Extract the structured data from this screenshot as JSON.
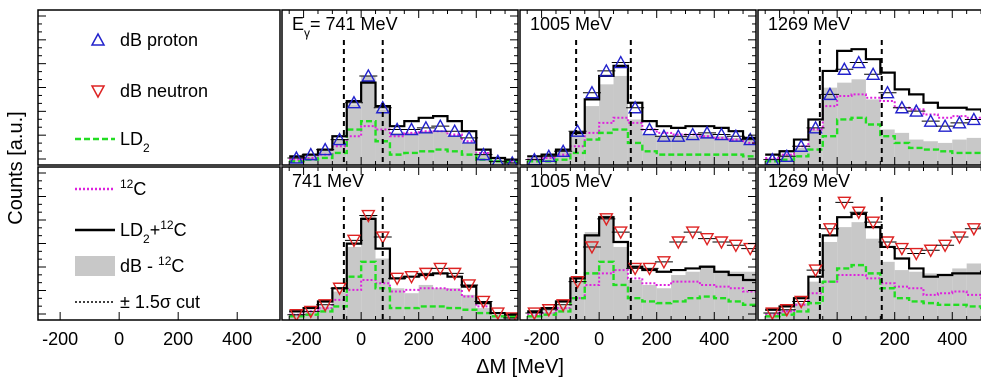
{
  "figure": {
    "ylabel": "Counts [a.u.]",
    "xlabel": "ΔM [MeV]",
    "legend": [
      {
        "key": "dBp",
        "label": "dB proton",
        "color": "#2222cc",
        "marker": "triangle-up"
      },
      {
        "key": "dBn",
        "label": "dB neutron",
        "color": "#dd2222",
        "marker": "triangle-down"
      },
      {
        "key": "LD2",
        "label": "LD",
        "sub": "2",
        "color": "#22dd22",
        "style": "dashed"
      },
      {
        "key": "C12",
        "sup": "12",
        "label": "C",
        "color": "#dd22dd",
        "style": "dotted"
      },
      {
        "key": "sum",
        "label": "LD",
        "sub": "2",
        "label2": "+",
        "sup2": "12",
        "label3": "C",
        "color": "#000000",
        "style": "solid"
      },
      {
        "key": "diff",
        "label": "dB - ",
        "sup2": "12",
        "label3": "C",
        "color": "#c8c8c8",
        "style": "filled"
      },
      {
        "key": "cut",
        "label": "± 1.5σ cut",
        "color": "#000000",
        "style": "dotted-black"
      }
    ],
    "legend_ticks": [
      "-200",
      "0",
      "200",
      "400"
    ]
  },
  "chart_data": [
    {
      "type": "histogram",
      "row": "top",
      "energy": "741",
      "title_prefix": "E",
      "title_sub": "γ",
      "title_suffix": "= 741 MeV",
      "xlim": [
        -275,
        545
      ],
      "ylim": [
        0,
        1
      ],
      "xticks": [
        -200,
        0,
        200,
        400
      ],
      "cuts": [
        -60,
        75
      ],
      "points_series": "dB proton",
      "x": [
        -225,
        -175,
        -125,
        -75,
        -25,
        25,
        75,
        125,
        175,
        225,
        275,
        325,
        375,
        425,
        475,
        525
      ],
      "LD2": [
        0.01,
        0.02,
        0.03,
        0.06,
        0.2,
        0.25,
        0.13,
        0.05,
        0.06,
        0.07,
        0.08,
        0.07,
        0.05,
        0.02,
        0.01,
        0.01
      ],
      "C12": [
        0.02,
        0.03,
        0.05,
        0.1,
        0.16,
        0.22,
        0.2,
        0.16,
        0.18,
        0.19,
        0.19,
        0.17,
        0.13,
        0.06,
        0.03,
        0.01
      ],
      "sum": [
        0.04,
        0.05,
        0.08,
        0.16,
        0.37,
        0.48,
        0.34,
        0.22,
        0.25,
        0.27,
        0.28,
        0.25,
        0.19,
        0.08,
        0.03,
        0.02
      ],
      "diff": [
        0.03,
        0.05,
        0.08,
        0.14,
        0.35,
        0.52,
        0.32,
        0.18,
        0.18,
        0.19,
        0.19,
        0.16,
        0.12,
        0.05,
        0.02,
        0.01
      ],
      "points": [
        0.03,
        0.05,
        0.08,
        0.14,
        0.36,
        0.52,
        0.33,
        0.2,
        0.2,
        0.21,
        0.22,
        0.19,
        0.15,
        0.05,
        0.01,
        0.0
      ]
    },
    {
      "type": "histogram",
      "row": "top",
      "energy": "1005",
      "title_prefix": "",
      "title_sub": "",
      "title_suffix": "1005 MeV",
      "xlim": [
        -275,
        545
      ],
      "ylim": [
        0,
        1
      ],
      "xticks": [
        -200,
        0,
        200,
        400
      ],
      "cuts": [
        -80,
        110
      ],
      "points_series": "dB proton",
      "x": [
        -225,
        -175,
        -125,
        -75,
        -25,
        25,
        75,
        125,
        175,
        225,
        275,
        325,
        375,
        425,
        475,
        525
      ],
      "LD2": [
        0.01,
        0.01,
        0.02,
        0.06,
        0.14,
        0.18,
        0.2,
        0.12,
        0.07,
        0.05,
        0.05,
        0.05,
        0.05,
        0.05,
        0.05,
        0.04
      ],
      "C12": [
        0.02,
        0.03,
        0.05,
        0.1,
        0.18,
        0.24,
        0.27,
        0.24,
        0.2,
        0.18,
        0.17,
        0.17,
        0.16,
        0.15,
        0.14,
        0.12
      ],
      "sum": [
        0.04,
        0.05,
        0.08,
        0.18,
        0.38,
        0.52,
        0.58,
        0.36,
        0.25,
        0.22,
        0.21,
        0.22,
        0.22,
        0.21,
        0.19,
        0.15
      ],
      "diff": [
        0.03,
        0.05,
        0.08,
        0.18,
        0.34,
        0.47,
        0.52,
        0.26,
        0.17,
        0.16,
        0.16,
        0.16,
        0.17,
        0.16,
        0.15,
        0.14
      ],
      "points": [
        0.02,
        0.04,
        0.07,
        0.19,
        0.42,
        0.55,
        0.6,
        0.33,
        0.2,
        0.16,
        0.16,
        0.17,
        0.18,
        0.17,
        0.16,
        0.14
      ]
    },
    {
      "type": "histogram",
      "row": "top",
      "energy": "1269",
      "title_prefix": "",
      "title_sub": "",
      "title_suffix": "1269 MeV",
      "xlim": [
        -275,
        545
      ],
      "ylim": [
        0,
        1
      ],
      "xticks": [
        -200,
        0,
        200,
        400
      ],
      "cuts": [
        -60,
        155
      ],
      "points_series": "dB proton",
      "x": [
        -225,
        -175,
        -125,
        -75,
        -25,
        25,
        75,
        125,
        175,
        225,
        275,
        325,
        375,
        425,
        475,
        525
      ],
      "LD2": [
        0.01,
        0.02,
        0.04,
        0.08,
        0.16,
        0.26,
        0.27,
        0.23,
        0.16,
        0.12,
        0.09,
        0.08,
        0.07,
        0.06,
        0.06,
        0.05
      ],
      "C12": [
        0.03,
        0.05,
        0.1,
        0.2,
        0.34,
        0.4,
        0.41,
        0.39,
        0.37,
        0.33,
        0.32,
        0.29,
        0.27,
        0.28,
        0.27,
        0.26
      ],
      "sum": [
        0.05,
        0.07,
        0.14,
        0.26,
        0.55,
        0.67,
        0.68,
        0.62,
        0.54,
        0.44,
        0.41,
        0.36,
        0.33,
        0.33,
        0.32,
        0.31
      ],
      "diff": [
        0.03,
        0.05,
        0.09,
        0.2,
        0.45,
        0.48,
        0.5,
        0.38,
        0.2,
        0.18,
        0.14,
        0.13,
        0.12,
        0.14,
        0.15,
        0.15
      ],
      "points": [
        0.02,
        0.04,
        0.1,
        0.21,
        0.41,
        0.56,
        0.6,
        0.53,
        0.42,
        0.33,
        0.31,
        0.25,
        0.22,
        0.24,
        0.26,
        0.26
      ]
    },
    {
      "type": "histogram",
      "row": "bottom",
      "energy": "741",
      "title_prefix": "",
      "title_sub": "",
      "title_suffix": "741 MeV",
      "xlim": [
        -275,
        545
      ],
      "ylim": [
        0,
        1
      ],
      "xticks": [
        -200,
        0,
        200,
        400
      ],
      "cuts": [
        -60,
        75
      ],
      "points_series": "dB neutron",
      "x": [
        -225,
        -175,
        -125,
        -75,
        -25,
        25,
        75,
        125,
        175,
        225,
        275,
        325,
        375,
        425,
        475,
        525
      ],
      "LD2": [
        0.01,
        0.02,
        0.04,
        0.07,
        0.25,
        0.34,
        0.18,
        0.06,
        0.06,
        0.07,
        0.07,
        0.06,
        0.05,
        0.03,
        0.01,
        0.01
      ],
      "C12": [
        0.02,
        0.04,
        0.06,
        0.11,
        0.17,
        0.23,
        0.21,
        0.16,
        0.17,
        0.18,
        0.18,
        0.17,
        0.13,
        0.07,
        0.03,
        0.01
      ],
      "sum": [
        0.04,
        0.06,
        0.1,
        0.18,
        0.45,
        0.6,
        0.42,
        0.24,
        0.25,
        0.26,
        0.27,
        0.25,
        0.19,
        0.09,
        0.03,
        0.02
      ],
      "diff": [
        0.02,
        0.04,
        0.07,
        0.16,
        0.43,
        0.62,
        0.36,
        0.18,
        0.15,
        0.2,
        0.18,
        0.18,
        0.14,
        0.06,
        0.02,
        0.01
      ],
      "points": [
        0.02,
        0.04,
        0.08,
        0.18,
        0.47,
        0.62,
        0.49,
        0.24,
        0.25,
        0.27,
        0.3,
        0.27,
        0.2,
        0.1,
        0.03,
        0.0
      ]
    },
    {
      "type": "histogram",
      "row": "bottom",
      "energy": "1005",
      "title_prefix": "",
      "title_sub": "",
      "title_suffix": "1005 MeV",
      "xlim": [
        -275,
        545
      ],
      "ylim": [
        0,
        1
      ],
      "xticks": [
        -200,
        0,
        200,
        400
      ],
      "cuts": [
        -80,
        110
      ],
      "points_series": "dB neutron",
      "x": [
        -225,
        -175,
        -125,
        -75,
        -25,
        25,
        75,
        125,
        175,
        225,
        275,
        325,
        375,
        425,
        475,
        525
      ],
      "LD2": [
        0.01,
        0.02,
        0.04,
        0.12,
        0.27,
        0.34,
        0.2,
        0.12,
        0.1,
        0.09,
        0.1,
        0.12,
        0.13,
        0.12,
        0.1,
        0.08
      ],
      "C12": [
        0.02,
        0.03,
        0.06,
        0.12,
        0.2,
        0.27,
        0.29,
        0.24,
        0.21,
        0.2,
        0.22,
        0.22,
        0.2,
        0.19,
        0.18,
        0.16
      ],
      "sum": [
        0.04,
        0.06,
        0.1,
        0.24,
        0.5,
        0.61,
        0.46,
        0.31,
        0.29,
        0.28,
        0.29,
        0.3,
        0.31,
        0.28,
        0.26,
        0.23
      ],
      "diff": [
        0.02,
        0.04,
        0.07,
        0.22,
        0.52,
        0.62,
        0.43,
        0.23,
        0.2,
        0.18,
        0.26,
        0.28,
        0.32,
        0.28,
        0.28,
        0.28
      ],
      "points": [
        0.03,
        0.05,
        0.08,
        0.22,
        0.43,
        0.6,
        0.52,
        0.3,
        0.3,
        0.34,
        0.46,
        0.52,
        0.48,
        0.46,
        0.44,
        0.42
      ]
    },
    {
      "type": "histogram",
      "row": "bottom",
      "energy": "1269",
      "title_prefix": "",
      "title_sub": "",
      "title_suffix": "1269 MeV",
      "xlim": [
        -275,
        545
      ],
      "ylim": [
        0,
        1
      ],
      "xticks": [
        -200,
        0,
        200,
        400
      ],
      "cuts": [
        -60,
        155
      ],
      "points_series": "dB neutron",
      "x": [
        -225,
        -175,
        -125,
        -75,
        -25,
        25,
        75,
        125,
        175,
        225,
        275,
        325,
        375,
        425,
        475,
        525
      ],
      "LD2": [
        0.01,
        0.02,
        0.04,
        0.09,
        0.22,
        0.3,
        0.32,
        0.27,
        0.18,
        0.12,
        0.1,
        0.09,
        0.08,
        0.08,
        0.07,
        0.06
      ],
      "C12": [
        0.02,
        0.04,
        0.08,
        0.15,
        0.22,
        0.26,
        0.26,
        0.24,
        0.21,
        0.19,
        0.18,
        0.14,
        0.15,
        0.16,
        0.14,
        0.12
      ],
      "sum": [
        0.05,
        0.07,
        0.12,
        0.25,
        0.5,
        0.61,
        0.63,
        0.55,
        0.43,
        0.36,
        0.3,
        0.25,
        0.26,
        0.27,
        0.27,
        0.28
      ],
      "diff": [
        0.03,
        0.05,
        0.09,
        0.22,
        0.46,
        0.55,
        0.58,
        0.48,
        0.34,
        0.29,
        0.28,
        0.27,
        0.27,
        0.3,
        0.33,
        0.34
      ],
      "points": [
        0.03,
        0.05,
        0.1,
        0.29,
        0.54,
        0.7,
        0.64,
        0.58,
        0.46,
        0.42,
        0.39,
        0.41,
        0.44,
        0.49,
        0.54,
        0.55
      ]
    }
  ]
}
